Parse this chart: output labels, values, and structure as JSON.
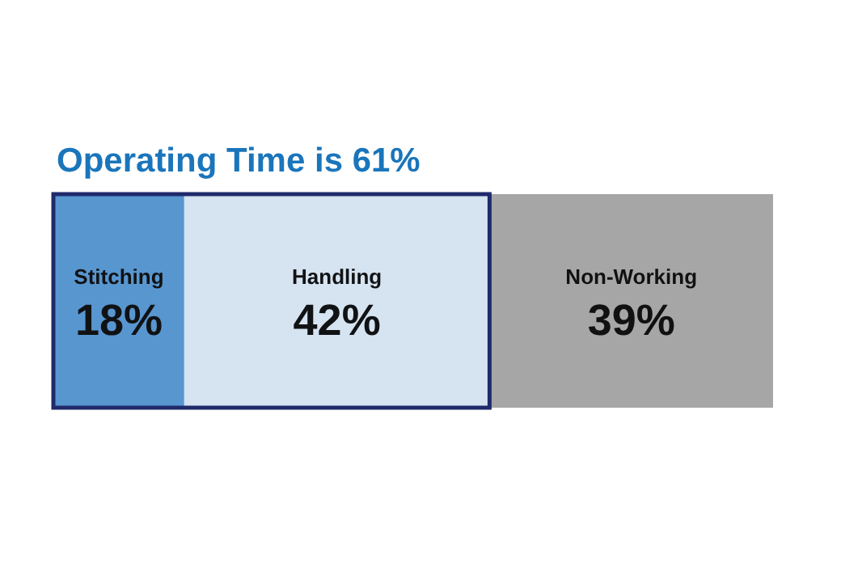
{
  "chart_data": {
    "type": "bar",
    "orientation": "horizontal",
    "stacked": true,
    "categories": [
      null
    ],
    "xlim": [
      0,
      99
    ],
    "series": [
      {
        "name": "Stitching",
        "color": "#5b9bd5",
        "values": [
          18
        ],
        "value_labels": [
          "18%"
        ]
      },
      {
        "name": "Handling",
        "color": "#deebf7",
        "values": [
          42
        ],
        "value_labels": [
          "42%"
        ]
      },
      {
        "name": "Non-Working",
        "color": "#a6a6a6",
        "values": [
          39
        ],
        "value_labels": [
          "39%"
        ]
      }
    ],
    "bands": [
      {
        "axis": "x",
        "from": 0,
        "to": 60,
        "label": "Operating Time is 61%",
        "color": "#1f2a6b"
      }
    ]
  }
}
